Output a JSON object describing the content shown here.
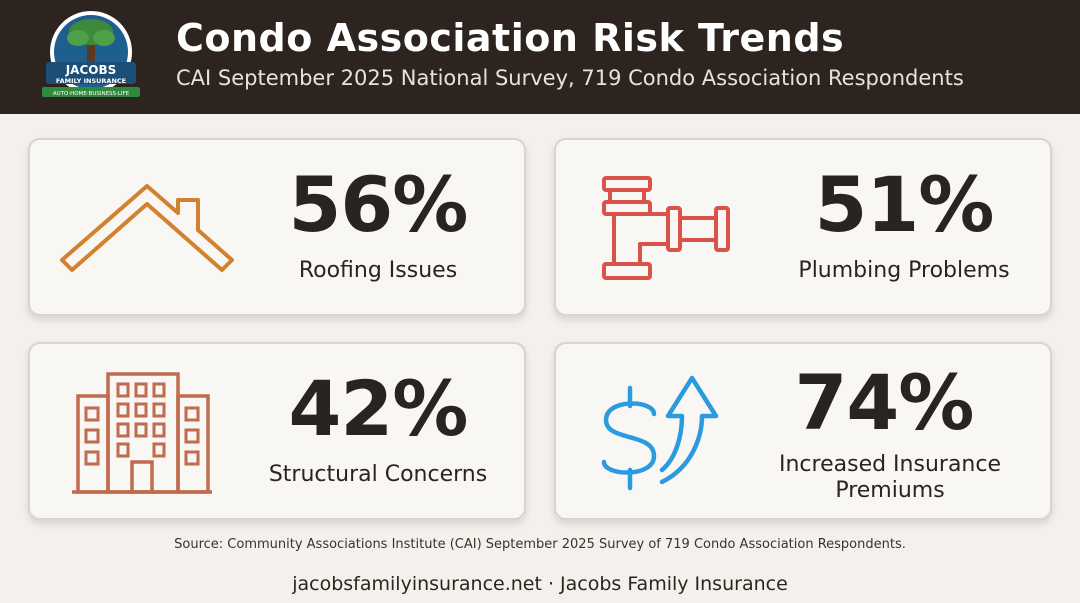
{
  "header": {
    "title": "Condo Association Risk Trends",
    "subtitle": "CAI September 2025 National Survey, 719 Condo Association Respondents",
    "background_color": "#2d241f"
  },
  "logo": {
    "line1": "JACOBS",
    "line2": "FAMILY INSURANCE",
    "tagline": "AUTO·HOME·BUSINESS·LIFE",
    "icon": "tree-icon"
  },
  "stats": [
    {
      "value": "56%",
      "label": "Roofing Issues",
      "icon": "roof-icon",
      "color": "#d2812e"
    },
    {
      "value": "51%",
      "label": "Plumbing Problems",
      "icon": "pipe-icon",
      "color": "#d9534a"
    },
    {
      "value": "42%",
      "label": "Structural Concerns",
      "icon": "building-icon",
      "color": "#c06a4e"
    },
    {
      "value": "74%",
      "label": "Increased Insurance Premiums",
      "icon": "dollar-arrow-icon",
      "color": "#2b9be0"
    }
  ],
  "source": "Source: Community Associations Institute (CAI) September 2025 Survey of 719 Condo Association Respondents.",
  "footer": "jacobsfamilyinsurance.net · Jacobs Family Insurance"
}
